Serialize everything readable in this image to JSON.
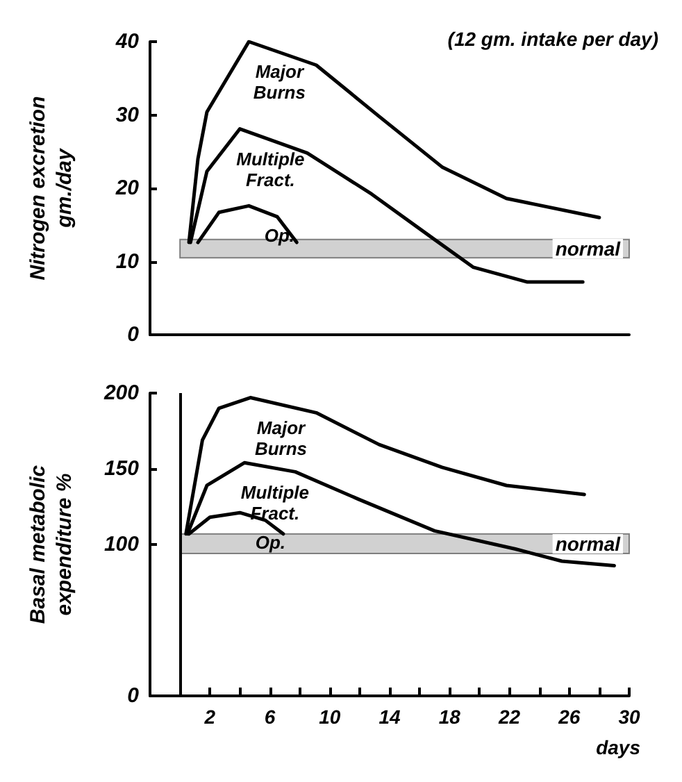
{
  "chart_data": [
    {
      "type": "line",
      "title": "(12 gm. intake per day)",
      "ylabel": "Nitrogen excretion\ngm./day",
      "xlim": [
        -2,
        30
      ],
      "ylim": [
        0,
        40
      ],
      "yticks": [
        0,
        10,
        20,
        30,
        40
      ],
      "tick_labels": "y",
      "grid": false,
      "legend": false,
      "marker": "none",
      "line_style": "solid",
      "series": [
        {
          "name": "Major Burns",
          "color": "#000000",
          "x": [
            0.6,
            1.2,
            1.8,
            4.6,
            9.1,
            13.3,
            17.5,
            21.8,
            28
          ],
          "values": [
            12.6,
            24,
            30.4,
            40,
            36.8,
            29.8,
            22.9,
            18.6,
            16
          ]
        },
        {
          "name": "Multiple Fract.",
          "color": "#000000",
          "x": [
            0.7,
            1.8,
            4,
            8.5,
            12.8,
            17,
            19.6,
            23.2,
            26.9
          ],
          "values": [
            12.6,
            22.3,
            28.1,
            24.8,
            19.2,
            13,
            9.2,
            7.2,
            7.2
          ]
        },
        {
          "name": "Op.",
          "color": "#000000",
          "x": [
            1.2,
            2.6,
            4.6,
            6.5,
            7.8
          ],
          "values": [
            12.6,
            16.7,
            17.6,
            16.1,
            12.6
          ]
        }
      ],
      "bands": [
        {
          "axis": "y",
          "from": 10.5,
          "to": 13,
          "label": "normal",
          "color": "#9a9a9a"
        }
      ]
    },
    {
      "type": "line",
      "xlabel": "days",
      "ylabel": "Basal metabolic\nexpenditure %",
      "xlim": [
        -2,
        30
      ],
      "xticks": [
        2,
        {
          "value": 4,
          "label": null
        },
        6,
        {
          "value": 8,
          "label": null
        },
        10,
        {
          "value": 12,
          "label": null
        },
        14,
        {
          "value": 16,
          "label": null
        },
        18,
        {
          "value": 20,
          "label": null
        },
        22,
        {
          "value": 24,
          "label": null
        },
        26,
        {
          "value": 28,
          "label": null
        },
        30
      ],
      "ylim": [
        0,
        200
      ],
      "yticks": [
        0,
        100,
        150,
        200
      ],
      "grid": false,
      "legend": false,
      "marker": "none",
      "line_style": "solid",
      "series": [
        {
          "name": "Major Burns",
          "color": "#000000",
          "x": [
            0.4,
            1.5,
            2.6,
            4.7,
            9.1,
            13.3,
            17.5,
            21.8,
            27
          ],
          "values": [
            107,
            169,
            190,
            197,
            187,
            166,
            151,
            139,
            133
          ]
        },
        {
          "name": "Multiple Fract.",
          "color": "#000000",
          "x": [
            0.5,
            1.8,
            4.3,
            7.7,
            11.9,
            17,
            22.4,
            25.5,
            29
          ],
          "values": [
            107,
            139,
            154,
            148,
            130,
            109,
            97,
            89,
            86
          ]
        },
        {
          "name": "Op.",
          "color": "#000000",
          "x": [
            0.6,
            2,
            4,
            5.7,
            6.9
          ],
          "values": [
            107,
            118,
            121,
            116,
            107
          ]
        }
      ],
      "bands": [
        {
          "axis": "y",
          "from": 94,
          "to": 107,
          "label": "normal",
          "color": "#9a9a9a"
        }
      ],
      "ref_lines": [
        {
          "axis": "x",
          "value": 0,
          "label": null,
          "color": "#000000"
        }
      ]
    }
  ]
}
